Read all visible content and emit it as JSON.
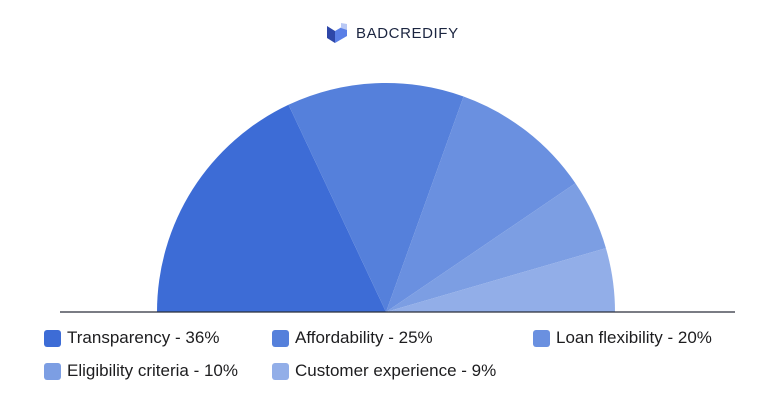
{
  "brand": {
    "name": "BADCREDIFY",
    "logo_colors": [
      "#2e47a8",
      "#5a7fe6",
      "#b8c8f5"
    ]
  },
  "chart_data": {
    "type": "pie",
    "variant": "half-donut-semicircle",
    "categories": [
      "Transparency",
      "Affordability",
      "Loan flexibility",
      "Eligibility criteria",
      "Customer experience"
    ],
    "values": [
      36,
      25,
      20,
      10,
      9
    ],
    "unit": "%",
    "colors": [
      "#3d6cd6",
      "#5580db",
      "#6a90e0",
      "#7c9ee3",
      "#92aee8"
    ],
    "legend": [
      {
        "label": "Transparency - 36%",
        "color": "#3d6cd6"
      },
      {
        "label": "Affordability - 25%",
        "color": "#5580db"
      },
      {
        "label": "Loan flexibility - 20%",
        "color": "#6a90e0"
      },
      {
        "label": "Eligibility criteria - 10%",
        "color": "#7c9ee3"
      },
      {
        "label": "Customer experience - 9%",
        "color": "#92aee8"
      }
    ],
    "legend_position": "bottom",
    "title": "",
    "baseline_color": "#2a2f3a"
  }
}
